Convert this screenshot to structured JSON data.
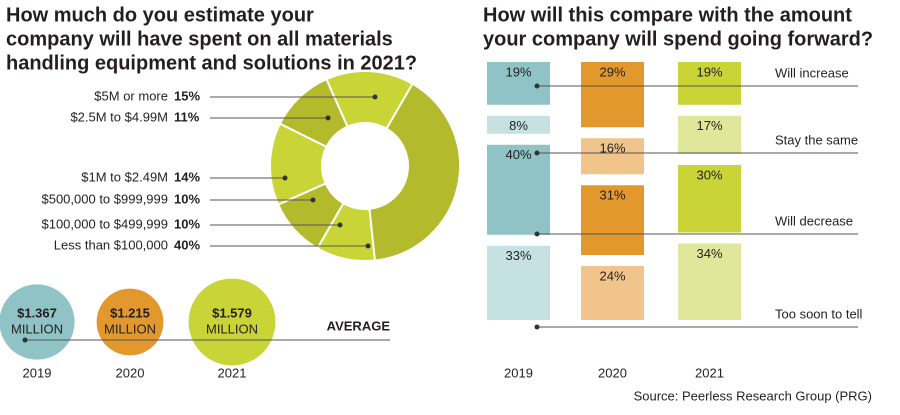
{
  "chart_data": [
    {
      "type": "pie",
      "title": [
        "How much do you estimate your",
        "company will have spent on all materials",
        "handling equipment and solutions in 2021?"
      ],
      "categories": [
        "$5M or more",
        "$2.5M to $4.99M",
        "$1M to $2.49M",
        "$500,000 to $999,999",
        "$100,000 to $499,999",
        "Less than $100,000"
      ],
      "values": [
        15,
        11,
        14,
        10,
        10,
        40
      ],
      "value_labels": [
        "15%",
        "11%",
        "14%",
        "10%",
        "10%",
        "40%"
      ],
      "colors": [
        "#c9d437",
        "#b3bb2c",
        "#c9d437",
        "#b3bb2c",
        "#c9d437",
        "#b3bb2c"
      ]
    },
    {
      "type": "circle",
      "title": "AVERAGE",
      "categories": [
        "2019",
        "2020",
        "2021"
      ],
      "values": [
        1.367,
        1.215,
        1.579
      ],
      "value_labels": [
        "$1.367",
        "$1.215",
        "$1.579"
      ],
      "unit": "MILLION",
      "colors": [
        "#8fc3c6",
        "#e2982c",
        "#c9d437"
      ]
    },
    {
      "type": "bar",
      "title": [
        "How will this compare with the amount",
        "your company will spend going forward?"
      ],
      "categories": [
        "2019",
        "2020",
        "2021"
      ],
      "series": [
        {
          "name": "Will increase",
          "values": [
            19,
            29,
            19
          ],
          "value_labels": [
            "19%",
            "29%",
            "19%"
          ],
          "colors": [
            "#8fc3c6",
            "#e2982c",
            "#c9d437"
          ]
        },
        {
          "name": "Stay the same",
          "values": [
            8,
            16,
            17
          ],
          "value_labels": [
            "8%",
            "16%",
            "17%"
          ],
          "colors": [
            "#c6e1e2",
            "#f0c48a",
            "#e0e69a"
          ]
        },
        {
          "name": "Will decrease",
          "values": [
            40,
            31,
            30
          ],
          "value_labels": [
            "40%",
            "31%",
            "30%"
          ],
          "colors": [
            "#8fc3c6",
            "#e2982c",
            "#c9d437"
          ]
        },
        {
          "name": "Too soon to tell",
          "values": [
            33,
            24,
            34
          ],
          "value_labels": [
            "33%",
            "24%",
            "34%"
          ],
          "colors": [
            "#c6e1e2",
            "#f0c48a",
            "#e0e69a"
          ]
        }
      ],
      "source": "Source: Peerless Research Group (PRG)"
    }
  ]
}
